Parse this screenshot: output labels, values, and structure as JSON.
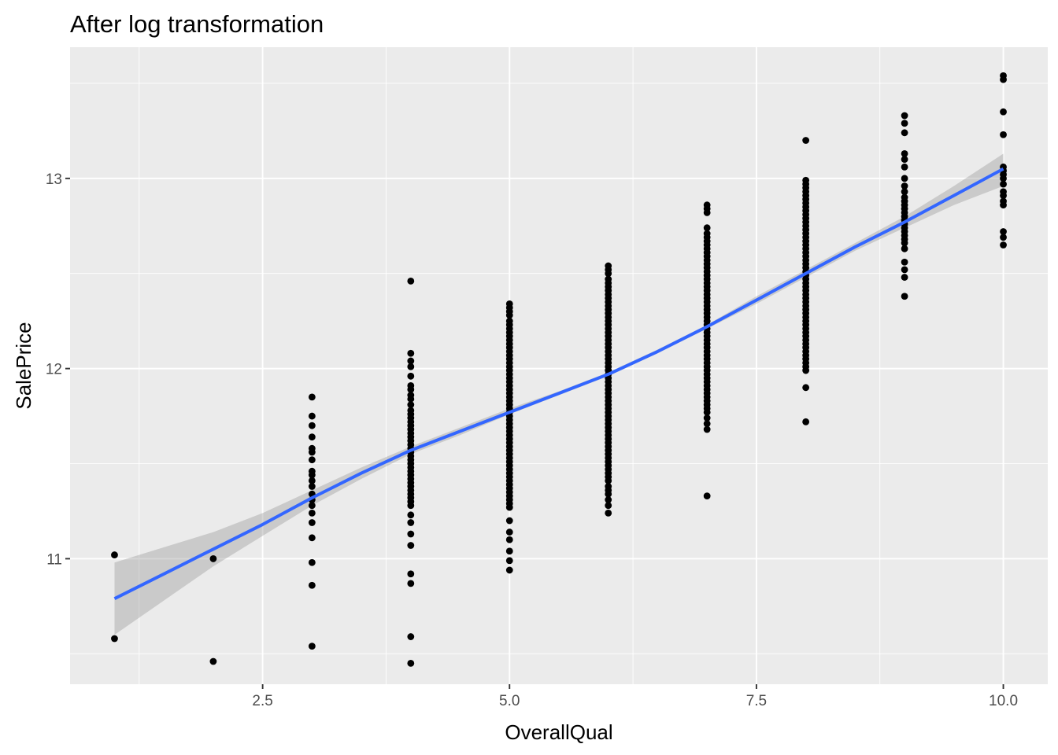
{
  "chart_data": {
    "type": "scatter",
    "title": "After log transformation",
    "xlabel": "OverallQual",
    "ylabel": "SalePrice",
    "xlim": [
      0.55,
      10.45
    ],
    "ylim": [
      10.34,
      13.69
    ],
    "x_major_ticks": [
      2.5,
      5.0,
      7.5,
      10.0
    ],
    "x_tick_labels": [
      "2.5",
      "5.0",
      "7.5",
      "10.0"
    ],
    "x_minor_ticks": [
      1.25,
      3.75,
      6.25,
      8.75
    ],
    "y_major_ticks": [
      11,
      12,
      13
    ],
    "y_tick_labels": [
      "11",
      "12",
      "13"
    ],
    "y_minor_ticks": [
      10.5,
      11.5,
      12.5,
      13.5
    ],
    "grid": true,
    "background": "#ebebeb",
    "grid_color": "#ffffff",
    "point_color": "#000000",
    "series": [
      {
        "type": "points",
        "groups": [
          {
            "x": 1,
            "y": [
              10.58,
              11.02
            ]
          },
          {
            "x": 2,
            "y": [
              10.46,
              11.0
            ]
          },
          {
            "x": 3,
            "y": [
              10.54,
              10.86,
              10.98,
              11.11,
              11.19,
              11.24,
              11.28,
              11.31,
              11.34,
              11.38,
              11.41,
              11.44,
              11.46,
              11.52,
              11.56,
              11.58,
              11.64,
              11.7,
              11.75,
              11.85
            ]
          },
          {
            "x": 4,
            "y": [
              10.45,
              10.59,
              10.87,
              10.92,
              11.07,
              11.13,
              11.19,
              11.23,
              11.28,
              11.3,
              11.32,
              11.34,
              11.36,
              11.38,
              11.4,
              11.42,
              11.44,
              11.46,
              11.48,
              11.5,
              11.52,
              11.54,
              11.56,
              11.58,
              11.6,
              11.62,
              11.64,
              11.66,
              11.68,
              11.7,
              11.72,
              11.74,
              11.76,
              11.78,
              11.81,
              11.84,
              11.86,
              11.89,
              11.91,
              11.96,
              12.01,
              12.04,
              12.08,
              12.46
            ]
          },
          {
            "x": 5,
            "y": [
              10.94,
              10.99,
              11.04,
              11.1,
              11.14,
              11.2,
              11.27,
              11.29,
              11.31,
              11.33,
              11.35,
              11.37,
              11.39,
              11.41,
              11.43,
              11.45,
              11.47,
              11.49,
              11.51,
              11.53,
              11.55,
              11.57,
              11.59,
              11.61,
              11.63,
              11.65,
              11.67,
              11.69,
              11.71,
              11.73,
              11.75,
              11.77,
              11.79,
              11.81,
              11.83,
              11.85,
              11.87,
              11.89,
              11.91,
              11.93,
              11.95,
              11.97,
              11.99,
              12.01,
              12.03,
              12.05,
              12.07,
              12.09,
              12.11,
              12.13,
              12.15,
              12.17,
              12.19,
              12.21,
              12.23,
              12.25,
              12.28,
              12.3,
              12.32,
              12.34
            ]
          },
          {
            "x": 6,
            "y": [
              11.24,
              11.28,
              11.31,
              11.34,
              11.36,
              11.38,
              11.41,
              11.43,
              11.45,
              11.47,
              11.49,
              11.51,
              11.53,
              11.55,
              11.57,
              11.59,
              11.61,
              11.63,
              11.65,
              11.67,
              11.69,
              11.71,
              11.73,
              11.75,
              11.77,
              11.79,
              11.81,
              11.83,
              11.85,
              11.87,
              11.89,
              11.91,
              11.93,
              11.95,
              11.97,
              11.99,
              12.01,
              12.03,
              12.05,
              12.07,
              12.09,
              12.11,
              12.13,
              12.15,
              12.17,
              12.19,
              12.21,
              12.23,
              12.25,
              12.27,
              12.29,
              12.31,
              12.33,
              12.35,
              12.37,
              12.39,
              12.41,
              12.43,
              12.45,
              12.47,
              12.5,
              12.52,
              12.54
            ]
          },
          {
            "x": 7,
            "y": [
              11.33,
              11.68,
              11.71,
              11.74,
              11.77,
              11.79,
              11.81,
              11.83,
              11.85,
              11.87,
              11.89,
              11.91,
              11.93,
              11.95,
              11.97,
              11.99,
              12.01,
              12.03,
              12.05,
              12.07,
              12.09,
              12.11,
              12.13,
              12.15,
              12.17,
              12.19,
              12.21,
              12.23,
              12.25,
              12.27,
              12.29,
              12.31,
              12.33,
              12.35,
              12.37,
              12.39,
              12.41,
              12.43,
              12.45,
              12.47,
              12.49,
              12.51,
              12.53,
              12.55,
              12.57,
              12.59,
              12.61,
              12.63,
              12.65,
              12.67,
              12.69,
              12.71,
              12.74,
              12.82,
              12.84,
              12.86
            ]
          },
          {
            "x": 8,
            "y": [
              11.72,
              11.9,
              11.99,
              12.01,
              12.03,
              12.05,
              12.07,
              12.09,
              12.11,
              12.13,
              12.15,
              12.17,
              12.19,
              12.21,
              12.23,
              12.25,
              12.27,
              12.29,
              12.31,
              12.33,
              12.35,
              12.37,
              12.39,
              12.41,
              12.43,
              12.45,
              12.47,
              12.49,
              12.51,
              12.53,
              12.55,
              12.57,
              12.59,
              12.61,
              12.63,
              12.65,
              12.67,
              12.69,
              12.71,
              12.73,
              12.75,
              12.77,
              12.79,
              12.81,
              12.83,
              12.85,
              12.87,
              12.89,
              12.91,
              12.93,
              12.95,
              12.97,
              12.99,
              13.2
            ]
          },
          {
            "x": 9,
            "y": [
              12.38,
              12.48,
              12.52,
              12.56,
              12.63,
              12.66,
              12.68,
              12.7,
              12.72,
              12.74,
              12.76,
              12.78,
              12.8,
              12.82,
              12.84,
              12.86,
              12.88,
              12.9,
              12.93,
              12.96,
              13.0,
              13.06,
              13.1,
              13.13,
              13.24,
              13.29,
              13.33
            ]
          },
          {
            "x": 10,
            "y": [
              12.65,
              12.69,
              12.72,
              12.86,
              12.88,
              12.91,
              12.93,
              12.97,
              13.0,
              13.02,
              13.04,
              13.06,
              13.23,
              13.35,
              13.52,
              13.54
            ]
          }
        ]
      },
      {
        "type": "smooth",
        "color": "#3366ff",
        "band_color": "#999999",
        "band_opacity": 0.4,
        "x": [
          1.0,
          1.5,
          2.0,
          2.5,
          3.0,
          3.5,
          4.0,
          4.5,
          5.0,
          5.5,
          6.0,
          6.5,
          7.0,
          7.5,
          8.0,
          8.5,
          9.0,
          9.5,
          10.0
        ],
        "y": [
          10.79,
          10.92,
          11.05,
          11.18,
          11.32,
          11.45,
          11.57,
          11.67,
          11.77,
          11.87,
          11.97,
          12.09,
          12.22,
          12.36,
          12.5,
          12.64,
          12.77,
          12.91,
          13.05
        ],
        "ymin": [
          10.6,
          10.78,
          10.96,
          11.12,
          11.28,
          11.42,
          11.55,
          11.65,
          11.76,
          11.86,
          11.96,
          12.08,
          12.21,
          12.34,
          12.48,
          12.62,
          12.74,
          12.86,
          12.96
        ],
        "ymax": [
          10.98,
          11.06,
          11.14,
          11.24,
          11.36,
          11.48,
          11.59,
          11.69,
          11.79,
          11.88,
          11.98,
          12.1,
          12.23,
          12.38,
          12.52,
          12.66,
          12.8,
          12.96,
          13.13
        ]
      }
    ]
  }
}
